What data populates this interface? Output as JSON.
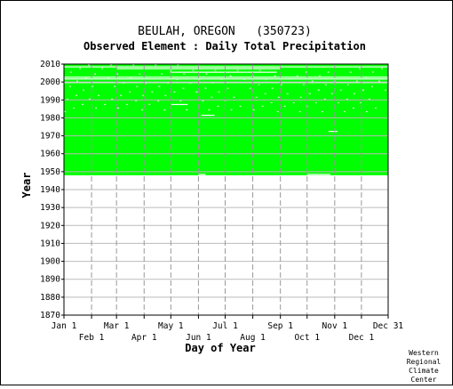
{
  "chart_data": {
    "type": "heatmap",
    "title": "BEULAH, OREGON   (350723)",
    "subtitle": "Observed Element : Daily Total Precipitation",
    "xlabel": "Day of Year",
    "ylabel": "Year",
    "x_ticks_upper": [
      "Jan 1",
      "Mar 1",
      "May 1",
      "Jul 1",
      "Sep 1",
      "Nov 1",
      "Dec 31"
    ],
    "x_ticks_upper_days": [
      1,
      60,
      121,
      182,
      244,
      305,
      365
    ],
    "x_ticks_lower": [
      "Feb 1",
      "Apr 1",
      "Jun 1",
      "Aug 1",
      "Oct 1",
      "Dec 1"
    ],
    "x_ticks_lower_days": [
      32,
      91,
      152,
      213,
      274,
      335
    ],
    "xlim": [
      1,
      365
    ],
    "ylim": [
      1870,
      2010
    ],
    "y_ticks": [
      1870,
      1880,
      1890,
      1900,
      1910,
      1920,
      1930,
      1940,
      1950,
      1960,
      1970,
      1980,
      1990,
      2000,
      2010
    ],
    "data_color": "#00ff00",
    "data_coverage": {
      "year_start": 1948,
      "year_end": 2009,
      "full_white_years": [
        1999,
        2001,
        2002
      ],
      "partial_gaps": [
        {
          "year": 2008,
          "day_start": 1,
          "day_end": 365
        },
        {
          "year": 2007,
          "day_start": 60,
          "day_end": 244
        },
        {
          "year": 2005,
          "day_start": 120,
          "day_end": 240
        },
        {
          "year": 1987,
          "day_start": 122,
          "day_end": 140
        },
        {
          "year": 1981,
          "day_start": 155,
          "day_end": 170
        },
        {
          "year": 1972,
          "day_start": 298,
          "day_end": 308
        },
        {
          "year": 1948,
          "day_start": 152,
          "day_end": 160
        },
        {
          "year": 1948,
          "day_start": 274,
          "day_end": 300
        }
      ]
    }
  },
  "credit": [
    "Western",
    "Regional",
    "Climate",
    "Center"
  ]
}
